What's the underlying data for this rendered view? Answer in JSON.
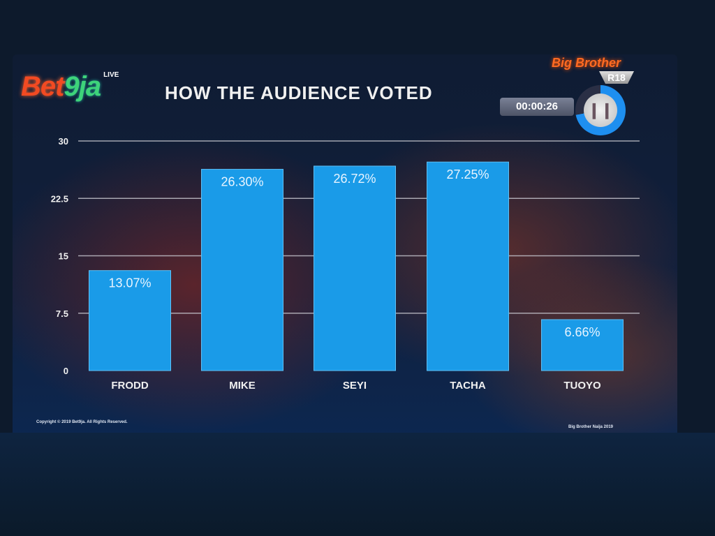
{
  "logo": {
    "brand_left": "Bet",
    "brand_right": "9ja",
    "live": "LIVE"
  },
  "overlay": {
    "show_logo": "Big Brother",
    "rating": "R18",
    "timer": "00:00:26",
    "pause_icon": "pause-icon",
    "progress_fraction": 0.72
  },
  "footer": {
    "copyright": "Copyright © 2019 Bet9ja. All Rights Reserved.",
    "show": "Big Brother Naija 2019"
  },
  "colors": {
    "bar": "#1a9be8",
    "grid": "#c8c8d0",
    "text": "#f0f0f0"
  },
  "chart_data": {
    "type": "bar",
    "title": "HOW THE AUDIENCE VOTED",
    "categories": [
      "FRODD",
      "MIKE",
      "SEYI",
      "TACHA",
      "TUOYO"
    ],
    "values": [
      13.07,
      26.3,
      26.72,
      27.25,
      6.66
    ],
    "data_labels": [
      "13.07%",
      "26.30%",
      "26.72%",
      "27.25%",
      "6.66%"
    ],
    "yticks": [
      0,
      7.5,
      15,
      22.5,
      30
    ],
    "ytick_labels": [
      "0",
      "7.5",
      "15",
      "22.5",
      "30"
    ],
    "ylim": [
      0,
      30
    ],
    "grid": true,
    "xlabel": "",
    "ylabel": ""
  }
}
